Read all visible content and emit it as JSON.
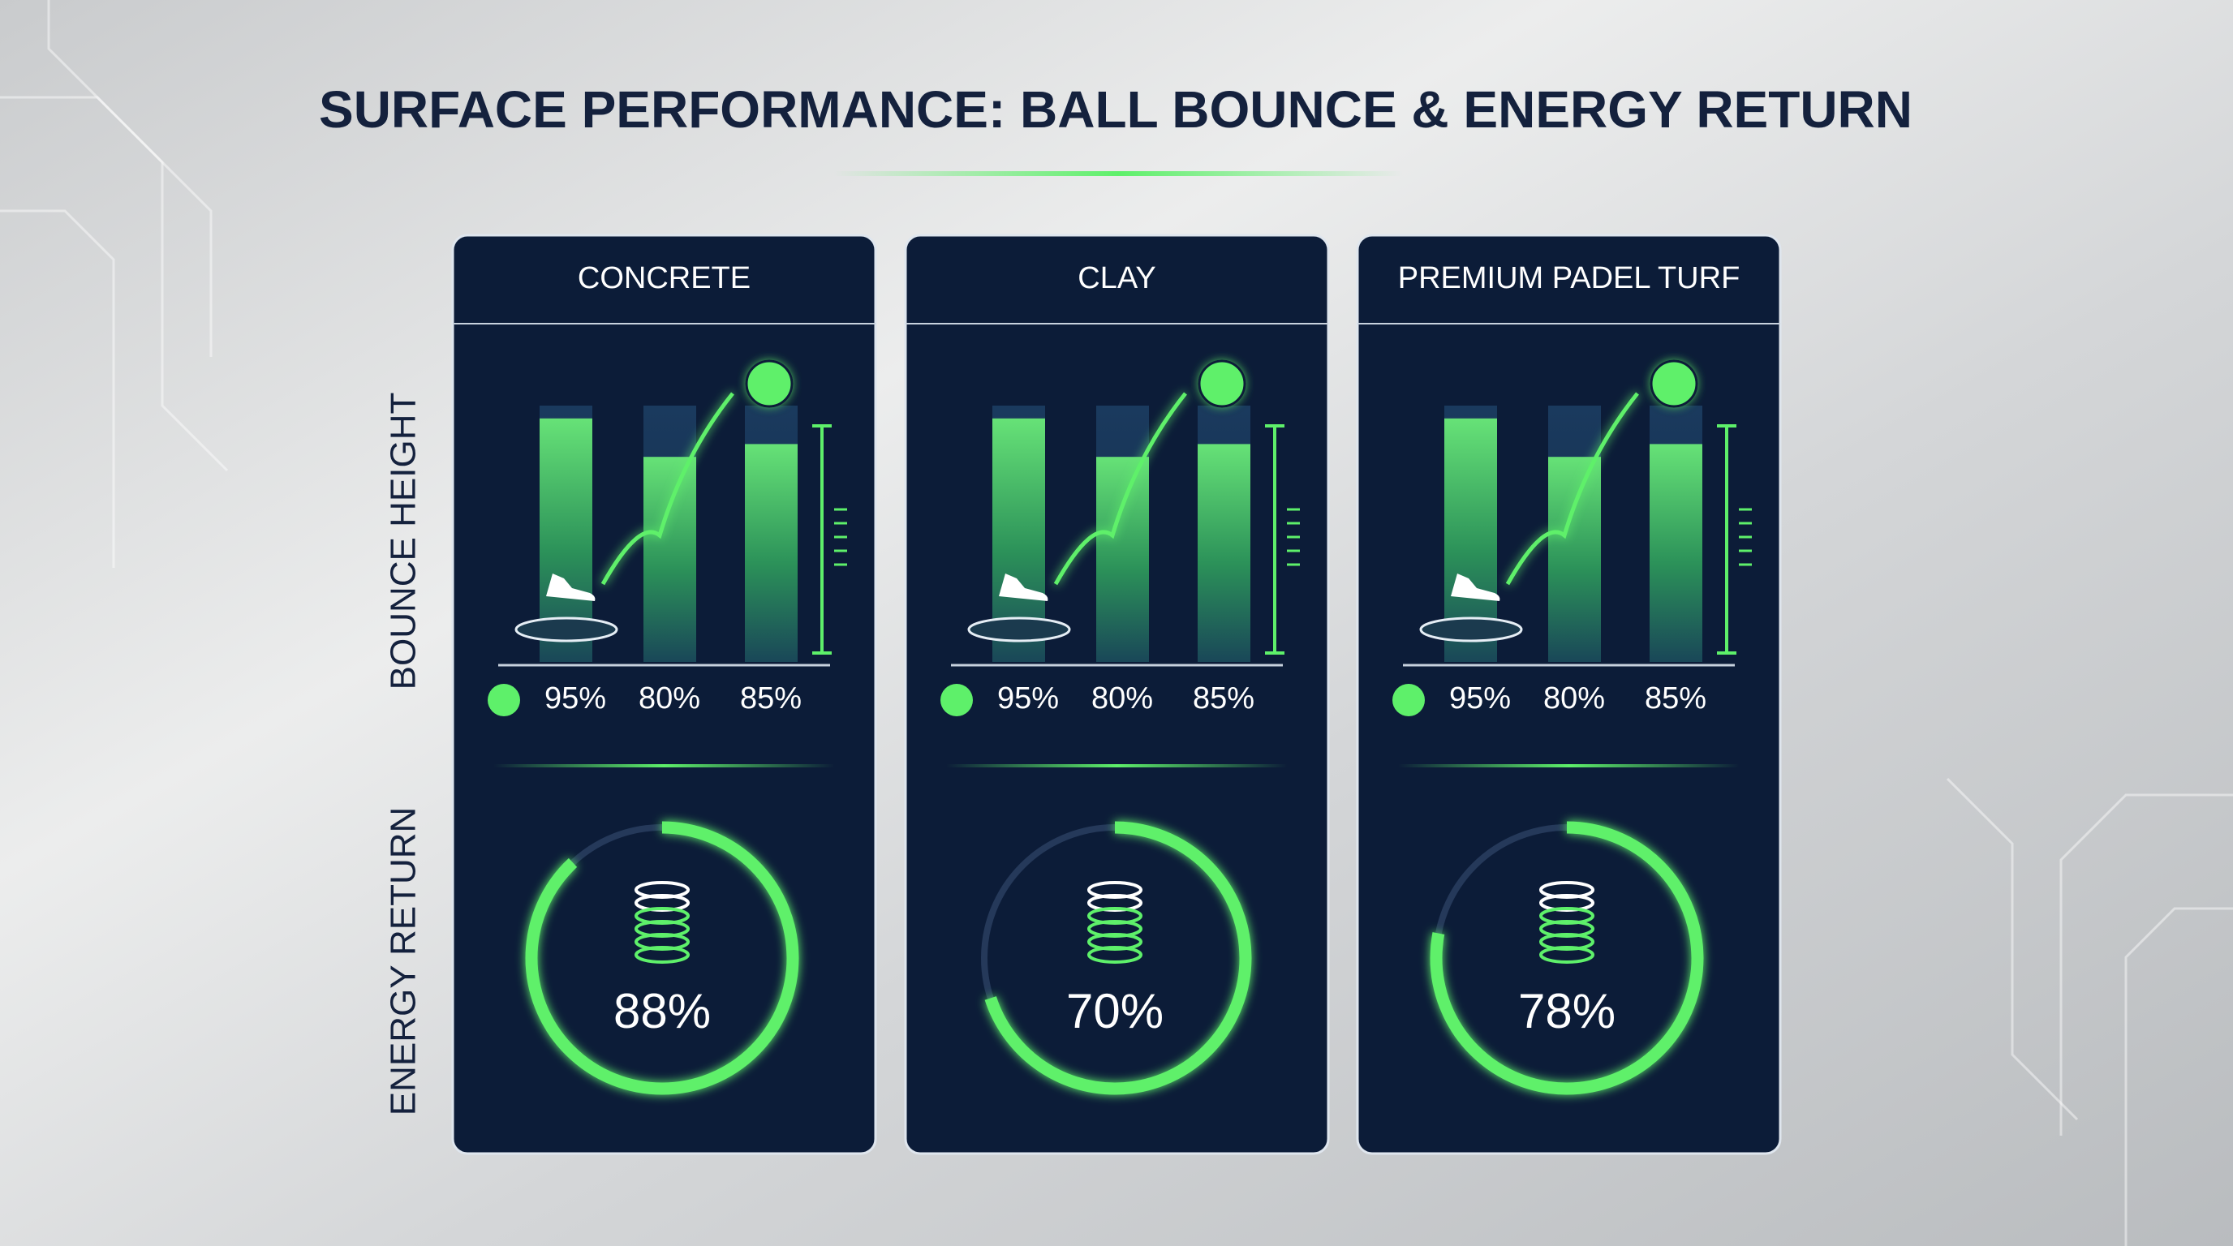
{
  "title": "SURFACE PERFORMANCE: BALL BOUNCE & ENERGY RETURN",
  "row_labels": [
    "BOUNCE HEIGHT",
    "ENERGY RETURN"
  ],
  "chart_data": [
    {
      "type": "bar",
      "title": "CONCRETE",
      "values": [
        95,
        80,
        85
      ],
      "value_labels": [
        "95%",
        "80%",
        "85%"
      ],
      "ylim": [
        0,
        100
      ],
      "color": "#5ef06a"
    },
    {
      "type": "bar",
      "title": "CLAY",
      "values": [
        95,
        80,
        85
      ],
      "value_labels": [
        "95%",
        "80%",
        "85%"
      ],
      "ylim": [
        0,
        100
      ],
      "color": "#5ef06a"
    },
    {
      "type": "bar",
      "title": "PREMIUM PADEL TURF",
      "values": [
        95,
        80,
        85
      ],
      "value_labels": [
        "95%",
        "80%",
        "85%"
      ],
      "ylim": [
        0,
        100
      ],
      "color": "#5ef06a"
    },
    {
      "type": "donut",
      "values": [
        88
      ],
      "value_labels": [
        "88%"
      ],
      "ylim": [
        0,
        100
      ],
      "color": "#5ef06a"
    },
    {
      "type": "donut",
      "values": [
        70
      ],
      "value_labels": [
        "70%"
      ],
      "ylim": [
        0,
        100
      ],
      "color": "#5ef06a"
    },
    {
      "type": "donut",
      "values": [
        78
      ],
      "value_labels": [
        "78%"
      ],
      "ylim": [
        0,
        100
      ],
      "color": "#5ef06a"
    }
  ]
}
